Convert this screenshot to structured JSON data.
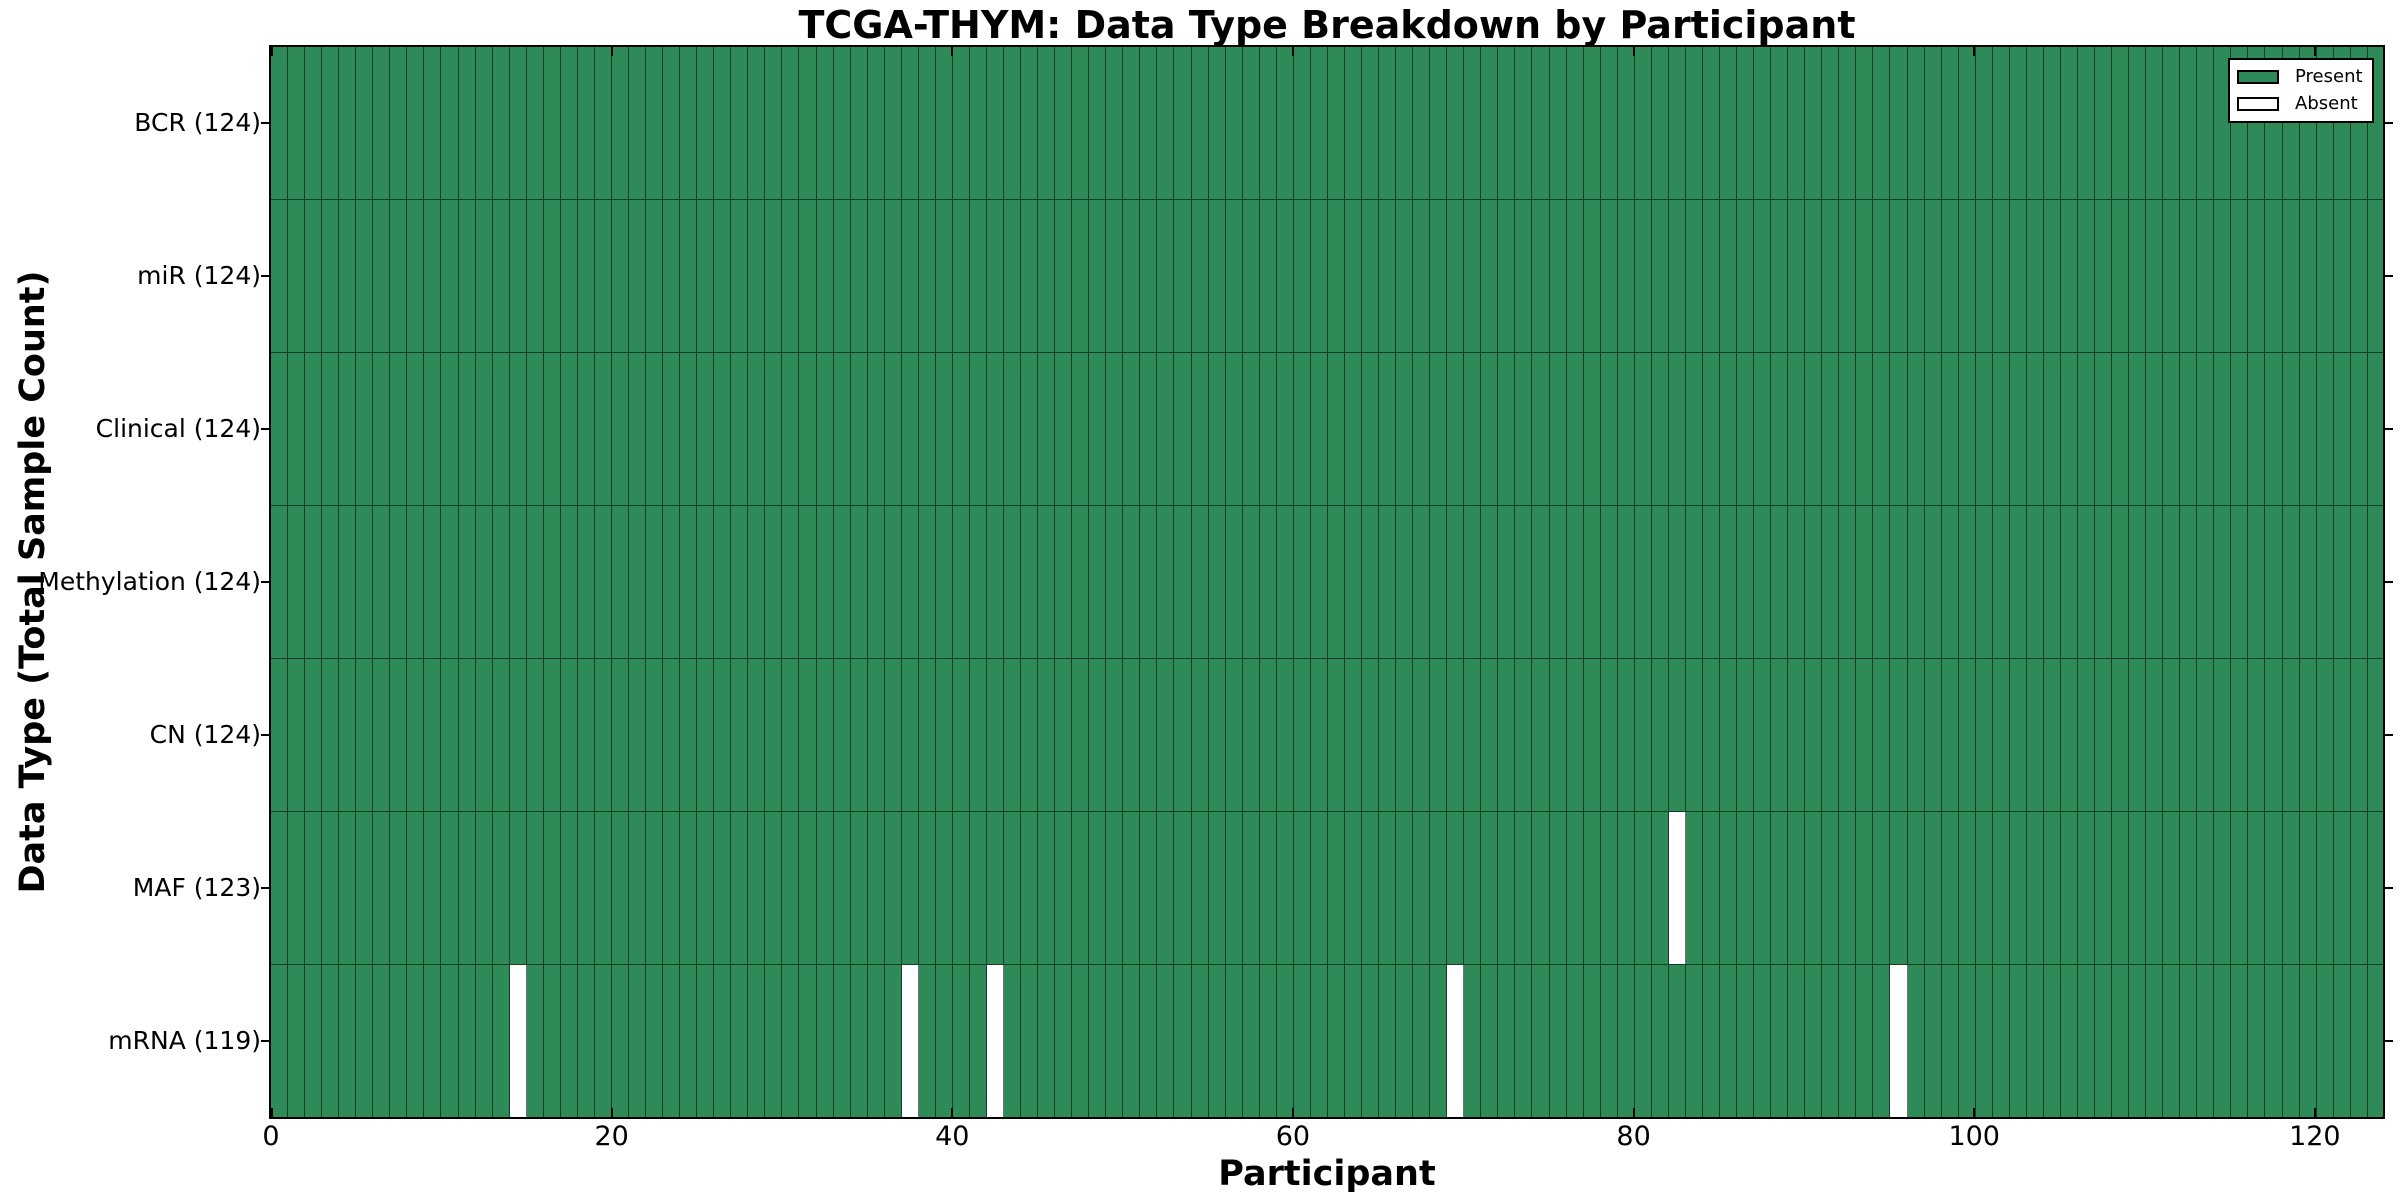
{
  "title": "TCGA-THYM: Data Type Breakdown by Participant",
  "chart_data": {
    "type": "heatmap",
    "title": "TCGA-THYM: Data Type Breakdown by Participant",
    "xlabel": "Participant",
    "ylabel": "Data Type (Total Sample Count)",
    "x_ticks": [
      0,
      20,
      40,
      60,
      80,
      100,
      120
    ],
    "x_range": [
      0,
      124
    ],
    "n_participants": 124,
    "rows": [
      {
        "name": "BCR",
        "label": "BCR (124)",
        "total": 124,
        "absent_participants": []
      },
      {
        "name": "miR",
        "label": "miR (124)",
        "total": 124,
        "absent_participants": []
      },
      {
        "name": "Clinical",
        "label": "Clinical (124)",
        "total": 124,
        "absent_participants": []
      },
      {
        "name": "Methylation",
        "label": "Methylation (124)",
        "total": 124,
        "absent_participants": []
      },
      {
        "name": "CN",
        "label": "CN (124)",
        "total": 124,
        "absent_participants": []
      },
      {
        "name": "MAF",
        "label": "MAF (123)",
        "total": 123,
        "absent_participants": [
          82
        ]
      },
      {
        "name": "mRNA",
        "label": "mRNA (119)",
        "total": 119,
        "absent_participants": [
          14,
          37,
          42,
          69,
          95
        ]
      }
    ],
    "legend": {
      "position": "upper-right",
      "items": [
        {
          "label": "Present",
          "color": "#2E8B57"
        },
        {
          "label": "Absent",
          "color": "#FFFFFF"
        }
      ]
    },
    "colors": {
      "present": "#2E8B57",
      "absent": "#FFFFFF",
      "edge": "#000000",
      "background": "#FFFFFF",
      "text": "#000000"
    },
    "grid": false,
    "legend_border": true
  }
}
